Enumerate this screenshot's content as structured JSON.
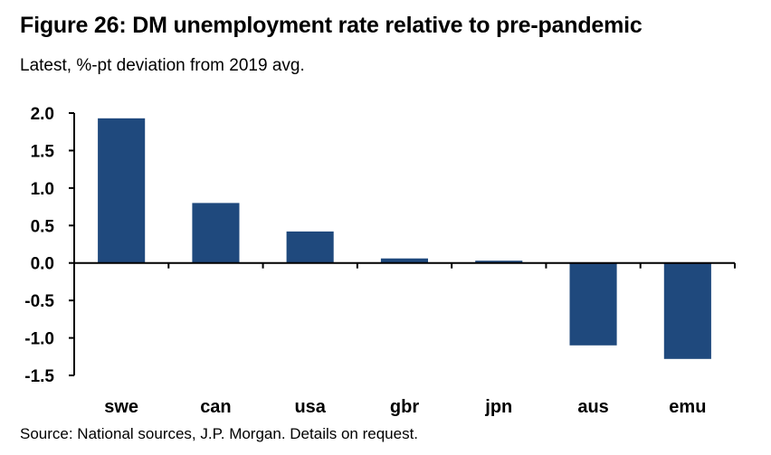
{
  "title": "Figure 26: DM unemployment rate relative to pre-pandemic",
  "subtitle": "Latest, %-pt deviation from 2019 avg.",
  "source": "Source: National sources, J.P. Morgan. Details on request.",
  "colors": {
    "bar": "#1f497d",
    "axis": "#000000"
  },
  "chart_data": {
    "type": "bar",
    "title": "Figure 26: DM unemployment rate relative to pre-pandemic",
    "subtitle": "Latest, %-pt deviation from 2019 avg.",
    "xlabel": "",
    "ylabel": "",
    "categories": [
      "swe",
      "can",
      "usa",
      "gbr",
      "jpn",
      "aus",
      "emu"
    ],
    "values": [
      1.93,
      0.8,
      0.42,
      0.06,
      0.03,
      -1.1,
      -1.28
    ],
    "ylim": [
      -1.5,
      2.0
    ],
    "yticks": [
      2.0,
      1.5,
      1.0,
      0.5,
      0.0,
      -0.5,
      -1.0,
      -1.5
    ],
    "ytick_labels": [
      "2.0",
      "1.5",
      "1.0",
      "0.5",
      "0.0",
      "-0.5",
      "-1.0",
      "-1.5"
    ],
    "grid": false,
    "legend": "none"
  }
}
